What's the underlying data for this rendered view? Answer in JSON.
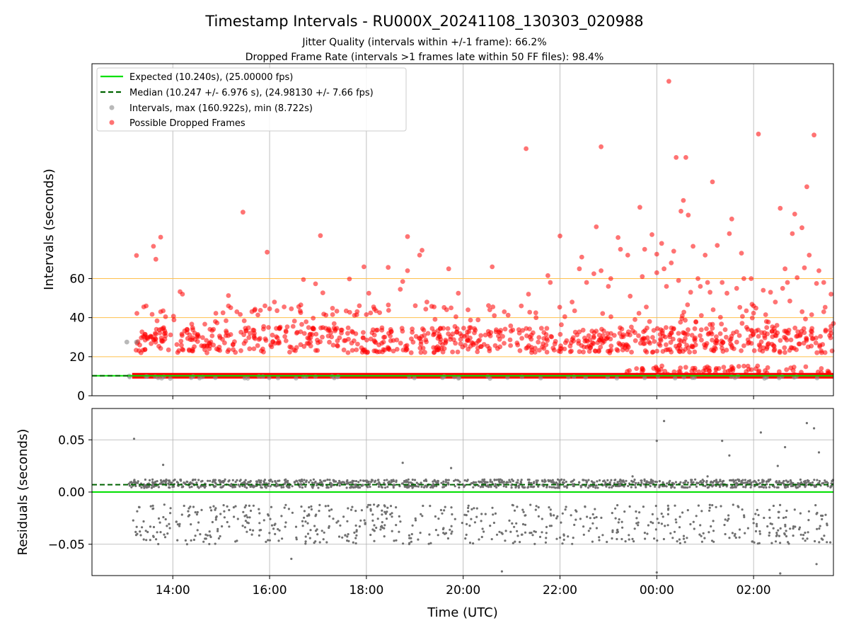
{
  "chart_data": [
    {
      "type": "scatter",
      "title": "Timestamp Intervals - RU000X_20241108_130303_020988",
      "subtitle_1": "Jitter Quality (intervals within +/-1 frame): 66.2%",
      "subtitle_2": "Dropped Frame Rate (intervals >1 frames late within 50 FF files): 98.4%",
      "ylabel": "Intervals (seconds)",
      "xlabel": "",
      "ylim": [
        0,
        170
      ],
      "yticks": [
        0,
        20,
        40,
        60
      ],
      "ytick_labels": [
        "0",
        "20",
        "40",
        "60"
      ],
      "xlim_hours": [
        12.33,
        27.65
      ],
      "xticks_hours": [
        14,
        16,
        18,
        20,
        22,
        24,
        26
      ],
      "grid": true,
      "legend_position": "top-left",
      "reference_lines": [
        {
          "name": "Expected (10.240s), (25.00000 fps)",
          "y": 10.24,
          "color": "#00e000",
          "style": "solid"
        },
        {
          "name": "Median (10.247 +/- 6.976 s), (24.98130 +/- 7.66 fps)",
          "y": 10.247,
          "color": "#006400",
          "style": "dashed"
        }
      ],
      "threshold_lines": [
        20,
        40,
        60
      ],
      "threshold_color": "#ffc04d",
      "series": [
        {
          "name": "Intervals, max (160.922s), min (8.722s)",
          "color": "#808080",
          "marker": "circle"
        },
        {
          "name": "Possible Dropped Frames",
          "color": "#ff0000",
          "marker": "circle"
        }
      ],
      "points_dropped": [
        [
          13.25,
          71.8
        ],
        [
          13.6,
          76.5
        ],
        [
          13.65,
          69.9
        ],
        [
          13.75,
          81.2
        ],
        [
          13.45,
          46
        ],
        [
          13.4,
          45.5
        ],
        [
          13.75,
          43
        ],
        [
          13.8,
          43.5
        ],
        [
          14.15,
          53.3
        ],
        [
          14.2,
          52
        ],
        [
          15.15,
          51.3
        ],
        [
          15.15,
          46
        ],
        [
          15.45,
          94
        ],
        [
          15.95,
          73.5
        ],
        [
          15.7,
          44.3
        ],
        [
          16.0,
          44.5
        ],
        [
          16.1,
          48
        ],
        [
          16.3,
          45.5
        ],
        [
          16.45,
          44.5
        ],
        [
          16.7,
          59.5
        ],
        [
          16.95,
          57.3
        ],
        [
          17.05,
          82
        ],
        [
          17.1,
          52.7
        ],
        [
          17.3,
          44.8
        ],
        [
          17.65,
          59.8
        ],
        [
          17.95,
          66
        ],
        [
          18.05,
          52.5
        ],
        [
          18.15,
          45.5
        ],
        [
          18.2,
          43.5
        ],
        [
          18.45,
          65.7
        ],
        [
          18.7,
          54.5
        ],
        [
          18.75,
          58.5
        ],
        [
          18.85,
          81.5
        ],
        [
          18.85,
          64
        ],
        [
          19.15,
          74.5
        ],
        [
          19.1,
          72
        ],
        [
          19.25,
          48
        ],
        [
          19.4,
          45.5
        ],
        [
          19.7,
          65
        ],
        [
          19.9,
          52.5
        ],
        [
          19.75,
          45
        ],
        [
          20.1,
          44
        ],
        [
          20.55,
          44
        ],
        [
          20.6,
          66
        ],
        [
          20.85,
          43
        ],
        [
          21.2,
          46
        ],
        [
          21.3,
          126.5
        ],
        [
          21.35,
          52
        ],
        [
          21.5,
          42.5
        ],
        [
          21.75,
          61.5
        ],
        [
          21.8,
          58
        ],
        [
          22.0,
          81.8
        ],
        [
          22.1,
          40.5
        ],
        [
          22.25,
          48
        ],
        [
          22.4,
          65
        ],
        [
          22.45,
          71
        ],
        [
          22.55,
          58
        ],
        [
          22.7,
          62.5
        ],
        [
          22.75,
          86.5
        ],
        [
          22.85,
          127.5
        ],
        [
          22.85,
          64
        ],
        [
          23.0,
          56
        ],
        [
          23.05,
          60
        ],
        [
          23.2,
          81
        ],
        [
          23.25,
          75
        ],
        [
          23.4,
          72
        ],
        [
          23.45,
          51
        ],
        [
          23.55,
          39
        ],
        [
          23.65,
          96.5
        ],
        [
          23.7,
          61
        ],
        [
          23.75,
          75
        ],
        [
          23.85,
          38
        ],
        [
          23.9,
          82.5
        ],
        [
          24.0,
          72.5
        ],
        [
          24.0,
          63
        ],
        [
          24.1,
          78
        ],
        [
          24.15,
          65
        ],
        [
          24.2,
          56
        ],
        [
          24.25,
          161
        ],
        [
          24.3,
          68
        ],
        [
          24.35,
          74
        ],
        [
          24.4,
          122
        ],
        [
          24.45,
          59
        ],
        [
          24.5,
          94.5
        ],
        [
          24.55,
          100
        ],
        [
          24.6,
          122
        ],
        [
          24.65,
          92.5
        ],
        [
          24.7,
          53
        ],
        [
          24.75,
          76.5
        ],
        [
          24.85,
          60
        ],
        [
          24.9,
          56
        ],
        [
          25.0,
          72
        ],
        [
          25.05,
          58
        ],
        [
          25.1,
          53
        ],
        [
          25.15,
          109.5
        ],
        [
          25.25,
          77
        ],
        [
          25.35,
          58
        ],
        [
          25.45,
          52.5
        ],
        [
          25.5,
          83
        ],
        [
          25.55,
          90.5
        ],
        [
          25.65,
          55
        ],
        [
          25.75,
          73
        ],
        [
          25.8,
          60
        ],
        [
          25.85,
          43.5
        ],
        [
          25.95,
          60
        ],
        [
          26.0,
          46
        ],
        [
          26.1,
          134
        ],
        [
          26.2,
          54
        ],
        [
          26.25,
          41.5
        ],
        [
          26.35,
          53
        ],
        [
          26.45,
          48
        ],
        [
          26.55,
          96
        ],
        [
          26.6,
          55
        ],
        [
          26.65,
          65
        ],
        [
          26.7,
          58
        ],
        [
          26.75,
          48.5
        ],
        [
          26.8,
          83
        ],
        [
          26.85,
          93
        ],
        [
          26.9,
          60.5
        ],
        [
          27.0,
          86
        ],
        [
          27.05,
          65.5
        ],
        [
          27.1,
          107
        ],
        [
          27.15,
          72
        ],
        [
          27.2,
          41.5
        ],
        [
          27.25,
          133.5
        ],
        [
          27.3,
          57.5
        ],
        [
          27.35,
          64
        ],
        [
          27.45,
          43
        ],
        [
          27.6,
          52
        ],
        [
          27.65,
          37
        ],
        [
          27.45,
          58
        ]
      ],
      "points_grey": [
        [
          13.05,
          27.5
        ],
        [
          13.2,
          10.2
        ],
        [
          13.25,
          27.5
        ],
        [
          13.1,
          10.1
        ]
      ],
      "band_dense_y": [
        10.24
      ],
      "band_lower_range": [
        22,
        35
      ],
      "time_range_hours": [
        13.08,
        27.65
      ]
    },
    {
      "type": "scatter",
      "title": "",
      "xlabel": "Time (UTC)",
      "ylabel": "Residuals (seconds)",
      "ylim": [
        -0.08,
        0.08
      ],
      "yticks": [
        -0.05,
        0.0,
        0.05
      ],
      "ytick_labels": [
        "−0.05",
        "0.00",
        "0.05"
      ],
      "xlim_hours": [
        12.33,
        27.65
      ],
      "xticks_hours": [
        14,
        16,
        18,
        20,
        22,
        24,
        26
      ],
      "xtick_labels": [
        "14:00",
        "16:00",
        "18:00",
        "20:00",
        "22:00",
        "00:00",
        "02:00"
      ],
      "grid": true,
      "reference_lines": [
        {
          "name": "Expected",
          "y": 0.0,
          "color": "#00e000",
          "style": "solid"
        },
        {
          "name": "Median",
          "y": 0.007,
          "color": "#006400",
          "style": "dashed"
        }
      ],
      "series": [
        {
          "name": "Residuals",
          "color": "#707070",
          "marker": "circle"
        }
      ],
      "outliers": [
        [
          13.2,
          0.051
        ],
        [
          13.8,
          0.026
        ],
        [
          16.45,
          -0.064
        ],
        [
          18.75,
          0.028
        ],
        [
          19.75,
          0.023
        ],
        [
          20.8,
          -0.076
        ],
        [
          24.0,
          0.049
        ],
        [
          24.15,
          0.068
        ],
        [
          24.0,
          -0.077
        ],
        [
          26.15,
          0.057
        ],
        [
          26.65,
          0.043
        ],
        [
          26.55,
          -0.078
        ],
        [
          27.1,
          0.066
        ],
        [
          27.25,
          0.061
        ],
        [
          27.35,
          0.038
        ],
        [
          27.3,
          -0.069
        ],
        [
          23.5,
          0.015
        ],
        [
          25.05,
          0.015
        ],
        [
          25.35,
          0.049
        ],
        [
          25.5,
          0.035
        ],
        [
          26.5,
          0.025
        ]
      ],
      "band_upper_range": [
        0.004,
        0.012
      ],
      "band_lower_range": [
        -0.05,
        -0.012
      ]
    }
  ]
}
